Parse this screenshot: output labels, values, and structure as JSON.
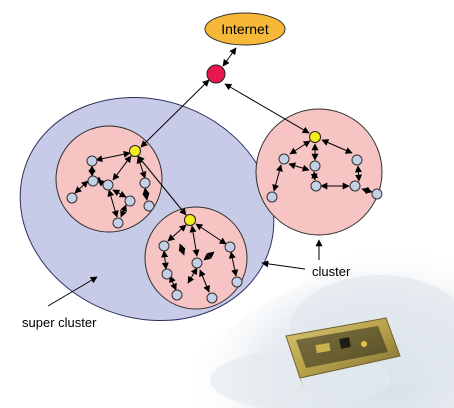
{
  "labels": {
    "internet": "Internet",
    "cluster": "cluster",
    "super_cluster": "super cluster"
  },
  "colors": {
    "internet_fill": "#f7b838",
    "super_cluster_fill": "#c8cbe8",
    "cluster_fill": "#f6c4c2",
    "gateway_node": "#f2ee1e",
    "sensor_node": "#c5cfe6",
    "router_node": "#e8174f",
    "arrow": "#000000"
  },
  "icons": {
    "router": "red-router-node-icon",
    "gateway": "yellow-gateway-node-icon",
    "sensor": "light-blue-sensor-node-icon",
    "device_photo": "sensor-mote-device-photo"
  }
}
